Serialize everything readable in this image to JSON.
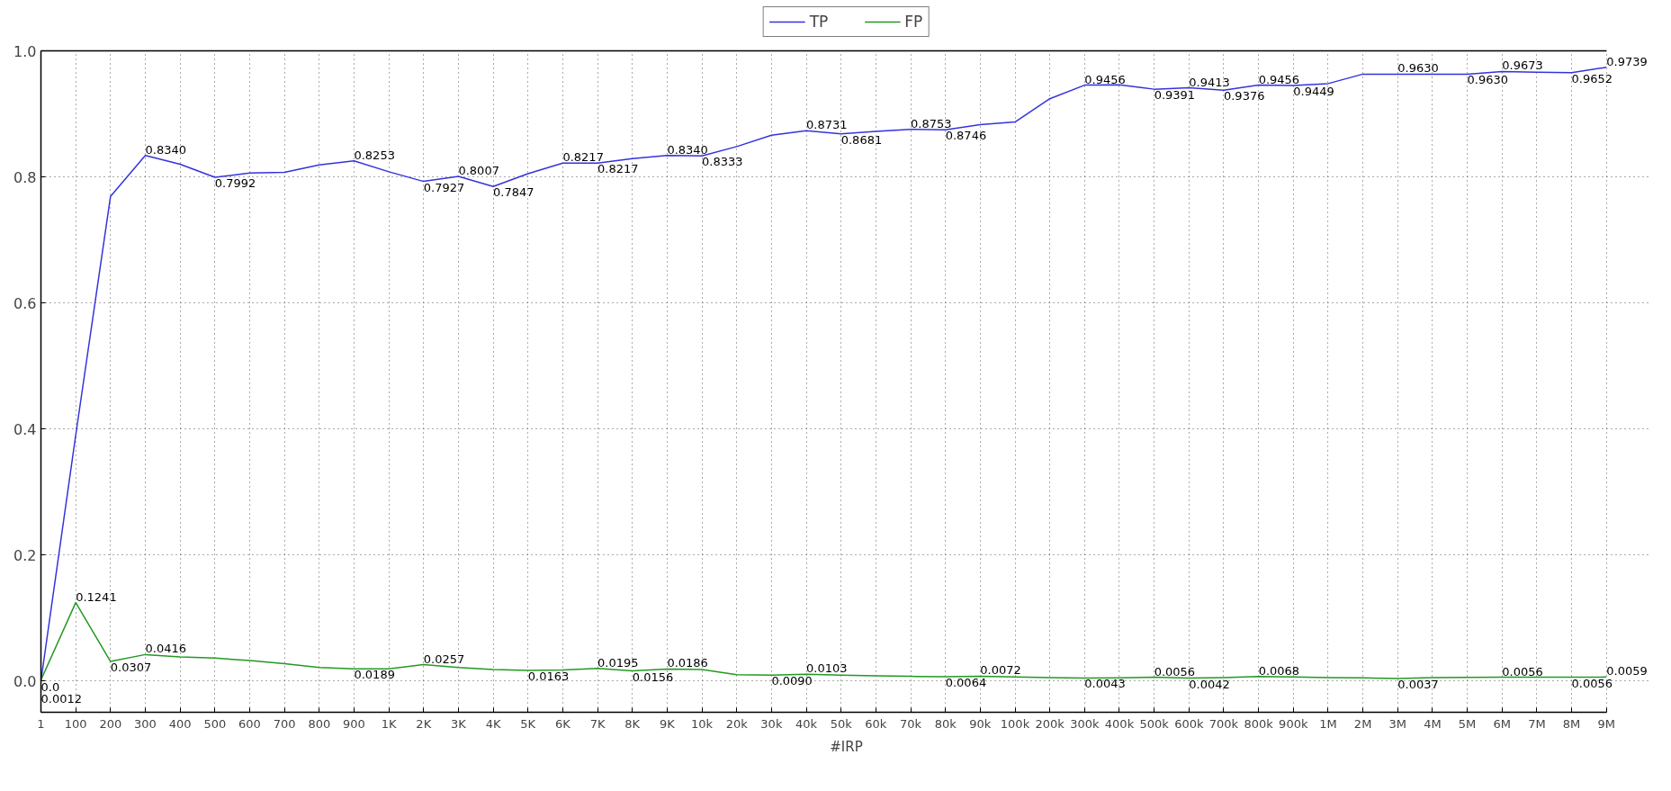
{
  "chart_data": {
    "type": "line",
    "xlabel": "#IRP",
    "categories": [
      "1",
      "100",
      "200",
      "300",
      "400",
      "500",
      "600",
      "700",
      "800",
      "900",
      "1K",
      "2K",
      "3K",
      "4K",
      "5K",
      "6K",
      "7K",
      "8K",
      "9K",
      "10k",
      "20k",
      "30k",
      "40k",
      "50k",
      "60k",
      "70k",
      "80k",
      "90k",
      "100k",
      "200k",
      "300k",
      "400k",
      "500k",
      "600k",
      "700k",
      "800k",
      "900k",
      "1M",
      "2M",
      "3M",
      "4M",
      "5M",
      "6M",
      "7M",
      "8M",
      "9M"
    ],
    "series": [
      {
        "name": "TP",
        "color": "#3333dd",
        "values": [
          0.0,
          0.39,
          0.769,
          0.834,
          0.82,
          0.7992,
          0.806,
          0.807,
          0.819,
          0.8253,
          0.808,
          0.7927,
          0.8007,
          0.7847,
          0.805,
          0.8217,
          0.8217,
          0.829,
          0.834,
          0.8333,
          0.848,
          0.866,
          0.8731,
          0.8681,
          0.872,
          0.8753,
          0.8746,
          0.883,
          0.887,
          0.924,
          0.9456,
          0.946,
          0.9391,
          0.9413,
          0.9376,
          0.9456,
          0.9449,
          0.948,
          0.963,
          0.963,
          0.963,
          0.963,
          0.9673,
          0.966,
          0.9652,
          0.9739
        ],
        "value_labels": [
          "0.0",
          null,
          null,
          "0.8340",
          null,
          "0.7992",
          null,
          null,
          null,
          "0.8253",
          null,
          "0.7927",
          "0.8007",
          "0.7847",
          null,
          "0.8217",
          "0.8217",
          null,
          "0.8340",
          "0.8333",
          null,
          null,
          "0.8731",
          "0.8681",
          null,
          "0.8753",
          "0.8746",
          null,
          null,
          null,
          "0.9456",
          null,
          "0.9391",
          "0.9413",
          "0.9376",
          "0.9456",
          "0.9449",
          null,
          null,
          "0.9630",
          null,
          "0.9630",
          "0.9673",
          null,
          "0.9652",
          "0.9739"
        ]
      },
      {
        "name": "FP",
        "color": "#229922",
        "values": [
          0.0012,
          0.1241,
          0.0307,
          0.0416,
          0.038,
          0.036,
          0.032,
          0.027,
          0.021,
          0.0189,
          0.019,
          0.0257,
          0.021,
          0.018,
          0.0163,
          0.017,
          0.0195,
          0.0156,
          0.0186,
          0.018,
          0.0097,
          0.009,
          0.0103,
          0.009,
          0.008,
          0.007,
          0.0064,
          0.0072,
          0.006,
          0.005,
          0.0043,
          0.0045,
          0.0056,
          0.0042,
          0.005,
          0.0068,
          0.006,
          0.005,
          0.0045,
          0.0037,
          0.005,
          0.0055,
          0.0056,
          0.0056,
          0.0056,
          0.0059
        ],
        "value_labels": [
          "0.0012",
          "0.1241",
          "0.0307",
          "0.0416",
          null,
          null,
          null,
          null,
          null,
          "0.0189",
          null,
          "0.0257",
          null,
          null,
          "0.0163",
          null,
          "0.0195",
          "0.0156",
          "0.0186",
          null,
          null,
          "0.0090",
          "0.0103",
          null,
          null,
          null,
          "0.0064",
          "0.0072",
          null,
          null,
          "0.0043",
          null,
          "0.0056",
          "0.0042",
          null,
          "0.0068",
          null,
          null,
          null,
          "0.0037",
          null,
          null,
          "0.0056",
          null,
          "0.0056",
          "0.0059"
        ]
      }
    ],
    "ylim": [
      -0.05,
      1.0
    ],
    "yticks": [
      {
        "value": 0.0,
        "label": "0.0"
      },
      {
        "value": 0.2,
        "label": "0.2"
      },
      {
        "value": 0.4,
        "label": "0.4"
      },
      {
        "value": 0.6,
        "label": "0.6"
      },
      {
        "value": 0.8,
        "label": "0.8"
      },
      {
        "value": 1.0,
        "label": "1.0"
      }
    ],
    "grid": true,
    "legend": "top",
    "line_style": "solid"
  }
}
